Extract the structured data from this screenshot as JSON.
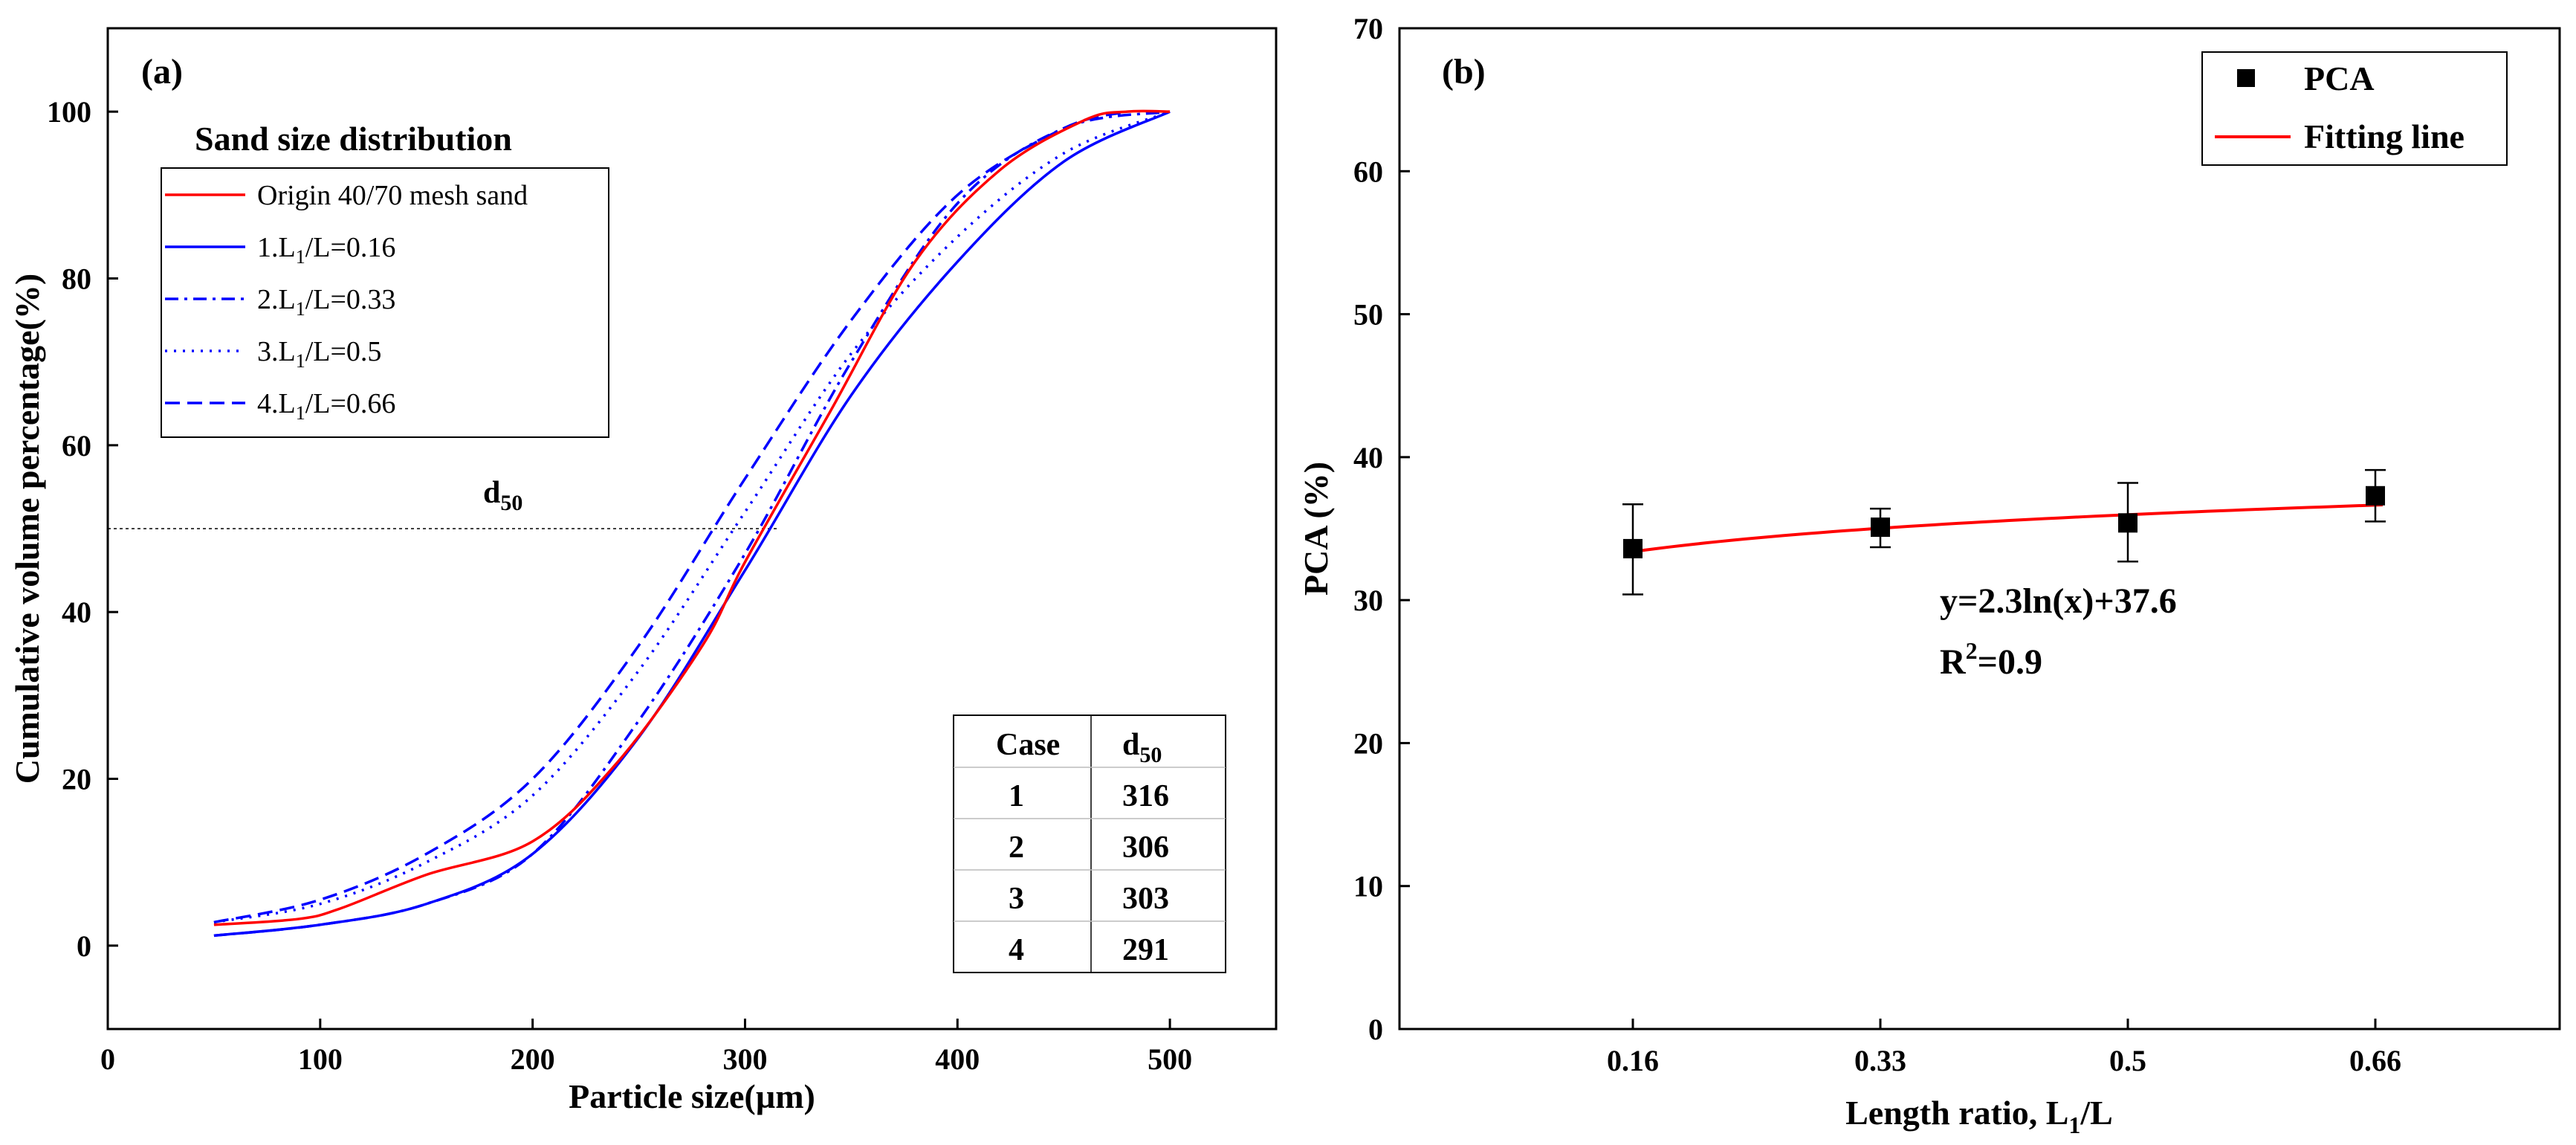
{
  "chart_data": [
    {
      "type": "line",
      "panel_label": "(a)",
      "xlabel": "Particle size(µm)",
      "ylabel": "Cumulative volume percentage(%)",
      "xlim": [
        0,
        550
      ],
      "ylim": [
        -10,
        110
      ],
      "xticks": [
        "0",
        "100",
        "200",
        "300",
        "400",
        "500"
      ],
      "yticks": [
        "0",
        "20",
        "40",
        "60",
        "80",
        "100"
      ],
      "legend_title": "Sand size distribution",
      "series": [
        {
          "name": "Origin 40/70 mesh sand",
          "label_main": "Origin 40/70 mesh sand",
          "label_sub": "",
          "label_tail": "",
          "color": "#ff0000",
          "dash": "",
          "x": [
            50,
            90,
            110,
            150,
            200,
            240,
            280,
            300,
            340,
            380,
            420,
            460,
            480,
            500
          ],
          "y": [
            2.5,
            3.2,
            4.5,
            8.5,
            12.5,
            22,
            36,
            46,
            64,
            82,
            93,
            99,
            100,
            100
          ]
        },
        {
          "name": "1.L1/L=0.16",
          "label_main": "1.L",
          "label_sub": "1",
          "label_tail": "/L=0.16",
          "color": "#0000ff",
          "dash": "",
          "x": [
            50,
            100,
            150,
            200,
            250,
            300,
            350,
            400,
            450,
            500
          ],
          "y": [
            1.2,
            2.5,
            5,
            11,
            25,
            45,
            66,
            82,
            94,
            100
          ]
        },
        {
          "name": "2.L1/L=0.33",
          "label_main": "2.L",
          "label_sub": "1",
          "label_tail": "/L=0.33",
          "color": "#0000ff",
          "dash": "18,8,4,8",
          "x": [
            50,
            100,
            150,
            200,
            250,
            300,
            350,
            400,
            450,
            500
          ],
          "y": [
            1.2,
            2.5,
            5,
            11,
            27,
            47,
            70,
            89,
            98,
            100
          ]
        },
        {
          "name": "3.L1/L=0.5",
          "label_main": "3.L",
          "label_sub": "1",
          "label_tail": "/L=0.5",
          "color": "#0000ff",
          "dash": "3,9",
          "x": [
            50,
            100,
            150,
            200,
            250,
            300,
            350,
            400,
            450,
            500
          ],
          "y": [
            2.8,
            5,
            10,
            18,
            33,
            52,
            71,
            85,
            95,
            100
          ]
        },
        {
          "name": "4.L1/L=0.66",
          "label_main": "4.L",
          "label_sub": "1",
          "label_tail": "/L=0.66",
          "color": "#0000ff",
          "dash": "20,10",
          "x": [
            50,
            100,
            150,
            200,
            250,
            300,
            350,
            400,
            450,
            480
          ],
          "y": [
            2.8,
            5.5,
            11,
            20,
            36,
            56,
            75,
            90,
            98,
            100
          ]
        }
      ],
      "reference_line": {
        "y": 50,
        "x_end": 315,
        "label_main": "d",
        "label_sub": "50"
      },
      "table": {
        "header_case": "Case",
        "header_d_main": "d",
        "header_d_sub": "50",
        "rows": [
          {
            "case": "1",
            "d50": "316"
          },
          {
            "case": "2",
            "d50": "306"
          },
          {
            "case": "3",
            "d50": "303"
          },
          {
            "case": "4",
            "d50": "291"
          }
        ]
      }
    },
    {
      "type": "scatter",
      "panel_label": "(b)",
      "xlabel_main": "Length ratio, L",
      "xlabel_sub": "1",
      "xlabel_tail": "/L",
      "ylabel": "PCA (%)",
      "categories": [
        "0.16",
        "0.33",
        "0.5",
        "0.66"
      ],
      "ylim": [
        0,
        70
      ],
      "yticks": [
        "0",
        "10",
        "20",
        "30",
        "40",
        "50",
        "60",
        "70"
      ],
      "points": {
        "name": "PCA",
        "values": [
          33.6,
          35.1,
          35.4,
          37.3
        ],
        "err_low": [
          30.4,
          33.7,
          32.7,
          35.5
        ],
        "err_high": [
          36.7,
          36.4,
          38.2,
          39.1
        ]
      },
      "fit": {
        "name": "Fitting line",
        "color": "#ff0000",
        "a": 2.3,
        "b": 37.6
      },
      "equation": "y=2.3ln(x)+37.6",
      "r2_main": "R",
      "r2_sup": "2",
      "r2_tail": "=0.9"
    }
  ]
}
